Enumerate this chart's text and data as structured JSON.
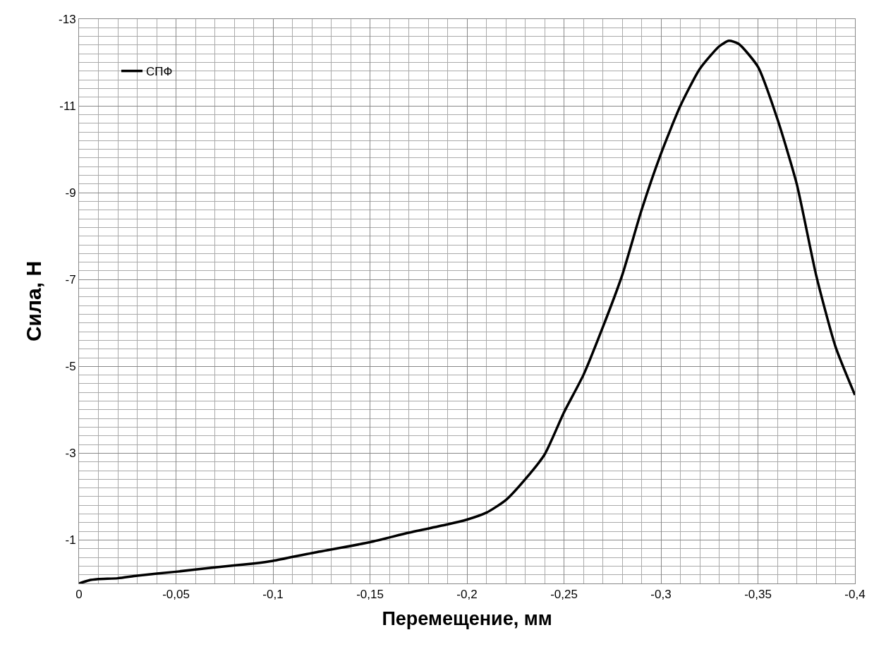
{
  "chart_data": {
    "type": "line",
    "xlabel": "Перемещение, мм",
    "ylabel": "Сила, Н",
    "x": [
      0,
      -0.005,
      -0.01,
      -0.02,
      -0.03,
      -0.05,
      -0.07,
      -0.09,
      -0.1,
      -0.12,
      -0.15,
      -0.17,
      -0.19,
      -0.2,
      -0.21,
      -0.22,
      -0.23,
      -0.24,
      -0.25,
      -0.26,
      -0.27,
      -0.28,
      -0.29,
      -0.3,
      -0.31,
      -0.32,
      -0.33,
      -0.335,
      -0.34,
      -0.35,
      -0.36,
      -0.37,
      -0.38,
      -0.39,
      -0.4
    ],
    "series": [
      {
        "name": "СПФ",
        "color": "#000000",
        "values": [
          0,
          -0.07,
          -0.1,
          -0.12,
          -0.18,
          -0.27,
          -0.37,
          -0.46,
          -0.52,
          -0.7,
          -0.95,
          -1.17,
          -1.36,
          -1.47,
          -1.63,
          -1.92,
          -2.4,
          -2.97,
          -3.94,
          -4.8,
          -5.9,
          -7.1,
          -8.6,
          -9.9,
          -11.0,
          -11.85,
          -12.37,
          -12.5,
          -12.43,
          -11.9,
          -10.7,
          -9.2,
          -7.1,
          -5.45,
          -4.34
        ]
      }
    ],
    "xlim": [
      0,
      -0.4
    ],
    "xticks": [
      0,
      {
        "value": -0.05,
        "label": "-0,05"
      },
      {
        "value": -0.1,
        "label": "-0,1"
      },
      {
        "value": -0.15,
        "label": "-0,15"
      },
      {
        "value": -0.2,
        "label": "-0,2"
      },
      {
        "value": -0.25,
        "label": "-0,25"
      },
      {
        "value": -0.3,
        "label": "-0,3"
      },
      {
        "value": -0.35,
        "label": "-0,35"
      },
      {
        "value": -0.4,
        "label": "-0,4"
      }
    ],
    "ylim": [
      0,
      -13
    ],
    "yticks": [
      -1,
      -3,
      -5,
      -7,
      -9,
      -11,
      -13
    ],
    "grid": true,
    "legend": "top left",
    "marker": "none",
    "line_style": "solid"
  }
}
